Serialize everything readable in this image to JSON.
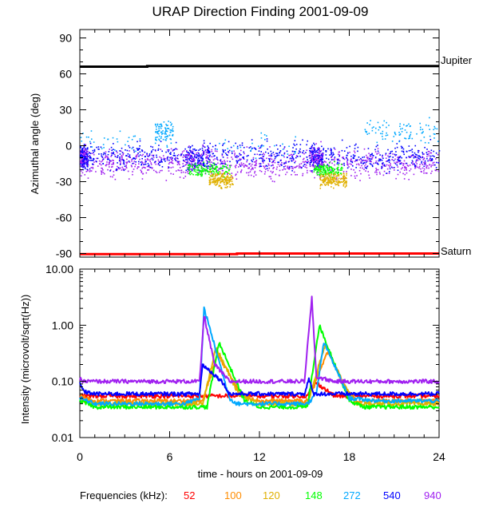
{
  "chart_data": [
    {
      "type": "scatter",
      "title": "URAP Direction Finding  2001-09-09",
      "xlabel": "",
      "ylabel": "Azimuthal angle (deg)",
      "xlim": [
        0,
        24
      ],
      "ylim": [
        -93,
        97
      ],
      "x_ticks": [
        0,
        6,
        12,
        18,
        24
      ],
      "y_ticks": [
        90,
        60,
        30,
        0,
        -30,
        -60,
        -90
      ],
      "y_tick_labels": [
        "90",
        "60",
        "30",
        "0",
        "-30",
        "-60",
        "-90"
      ],
      "reference_lines": [
        {
          "name": "Jupiter",
          "color": "#000000",
          "x": [
            0,
            4.5,
            4.5,
            24
          ],
          "y": [
            66,
            66,
            66.5,
            66.5
          ]
        },
        {
          "name": "Saturn",
          "color": "#ff0000",
          "x": [
            0,
            10.5,
            10.5,
            24
          ],
          "y": [
            -90.5,
            -90.5,
            -90,
            -90
          ]
        }
      ],
      "series_descriptions": [
        {
          "name": "540",
          "color": "#0000ff",
          "center_deg": -8,
          "spread_deg": 10
        },
        {
          "name": "940",
          "color": "#a020f0",
          "center_deg": -15,
          "spread_deg": 10
        },
        {
          "name": "272",
          "color": "#00a8ff",
          "active_hours": [
            [
              5,
              6.2
            ],
            [
              19,
              24
            ]
          ],
          "center_deg": 12
        },
        {
          "name": "148",
          "color": "#00ff00",
          "active_hours": [
            [
              7,
              10
            ],
            [
              15.5,
              17.5
            ]
          ],
          "center_deg": -22
        },
        {
          "name": "120",
          "color": "#e0b000",
          "active_hours": [
            [
              8.5,
              10
            ],
            [
              16,
              17.8
            ]
          ],
          "center_deg": -28
        }
      ]
    },
    {
      "type": "line",
      "title": "",
      "xlabel": "time - hours on 2001-09-09",
      "ylabel": "Intensity (microvolt/sqrt(Hz))",
      "xscale": "linear",
      "yscale": "log",
      "xlim": [
        0,
        24
      ],
      "ylim": [
        0.01,
        10
      ],
      "x_ticks": [
        0,
        6,
        12,
        18,
        24
      ],
      "x_tick_labels": [
        "0",
        "6",
        "12",
        "18",
        "24"
      ],
      "y_ticks": [
        0.01,
        0.1,
        1,
        10
      ],
      "y_tick_labels": [
        "0.01",
        "0.10",
        "1.00",
        "10.00"
      ],
      "series": [
        {
          "name": "52",
          "color": "#ff0000",
          "x": [
            0,
            0.5,
            1,
            8,
            9,
            10.5,
            14,
            15.2,
            15.8,
            17,
            24
          ],
          "y": [
            0.055,
            0.055,
            0.055,
            0.055,
            0.055,
            0.055,
            0.055,
            0.055,
            0.095,
            0.055,
            0.055
          ]
        },
        {
          "name": "100",
          "color": "#ff8c00",
          "x": [
            0,
            0.5,
            1,
            7,
            8.2,
            9.2,
            10.8,
            12,
            15.2,
            16.6,
            17.8,
            18.5,
            24
          ],
          "y": [
            0.055,
            0.05,
            0.045,
            0.045,
            0.045,
            0.3,
            0.06,
            0.045,
            0.045,
            0.35,
            0.07,
            0.045,
            0.045
          ]
        },
        {
          "name": "120",
          "color": "#e0b000",
          "x": [
            0,
            0.5,
            1,
            7,
            8.2,
            9.1,
            10.6,
            12,
            15.2,
            16.4,
            17.7,
            18.5,
            24
          ],
          "y": [
            0.048,
            0.044,
            0.04,
            0.04,
            0.04,
            0.4,
            0.06,
            0.04,
            0.04,
            0.45,
            0.08,
            0.04,
            0.04
          ]
        },
        {
          "name": "148",
          "color": "#00ff00",
          "x": [
            0,
            0.5,
            1,
            7,
            8.5,
            9.3,
            11,
            12,
            15.2,
            16,
            18,
            19,
            24
          ],
          "y": [
            0.045,
            0.04,
            0.035,
            0.035,
            0.035,
            0.5,
            0.045,
            0.035,
            0.035,
            1.0,
            0.045,
            0.035,
            0.035
          ]
        },
        {
          "name": "272",
          "color": "#00a8ff",
          "x": [
            0,
            0.5,
            1,
            7,
            8,
            8.3,
            10,
            10.5,
            12,
            15.2,
            15.8,
            16.3,
            18,
            20,
            24
          ],
          "y": [
            0.05,
            0.045,
            0.04,
            0.04,
            0.05,
            2.0,
            0.05,
            0.04,
            0.04,
            0.04,
            0.06,
            0.5,
            0.05,
            0.045,
            0.045
          ]
        },
        {
          "name": "540",
          "color": "#0000ff",
          "x": [
            0,
            0.3,
            1,
            7,
            8,
            8.2,
            9.5,
            10,
            12,
            15,
            15.3,
            15.6,
            16.3,
            17,
            24
          ],
          "y": [
            0.09,
            0.065,
            0.06,
            0.06,
            0.06,
            0.2,
            0.1,
            0.06,
            0.06,
            0.06,
            0.11,
            0.06,
            0.06,
            0.06,
            0.06
          ]
        },
        {
          "name": "940",
          "color": "#a020f0",
          "x": [
            0,
            0.3,
            1,
            7,
            8,
            8.3,
            9,
            10,
            12,
            15,
            15.5,
            15.8,
            17,
            24
          ],
          "y": [
            0.11,
            0.1,
            0.1,
            0.1,
            0.1,
            1.5,
            0.2,
            0.1,
            0.1,
            0.1,
            3.0,
            0.12,
            0.1,
            0.1
          ]
        }
      ]
    }
  ],
  "legend": {
    "label": "Frequencies (kHz):",
    "items": [
      {
        "text": "52",
        "color": "#ff0000"
      },
      {
        "text": "100",
        "color": "#ff8c00"
      },
      {
        "text": "120",
        "color": "#e0b000"
      },
      {
        "text": "148",
        "color": "#00ff00"
      },
      {
        "text": "272",
        "color": "#00a8ff"
      },
      {
        "text": "540",
        "color": "#0000ff"
      },
      {
        "text": "940",
        "color": "#a020f0"
      }
    ]
  }
}
